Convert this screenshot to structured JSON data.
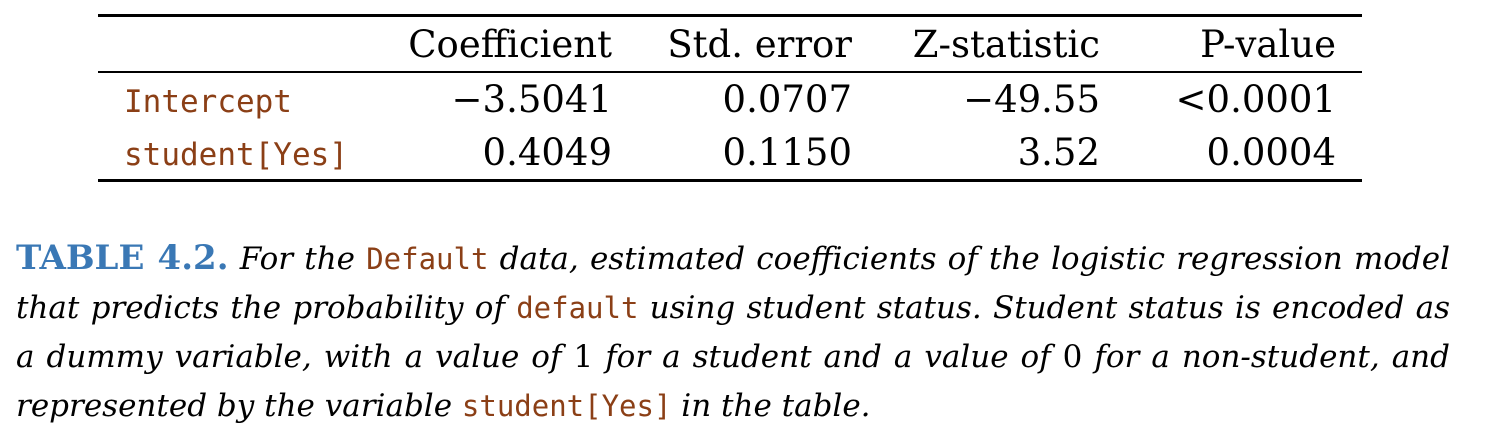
{
  "table": {
    "headers": [
      "Coefficient",
      "Std. error",
      "Z-statistic",
      "P-value"
    ],
    "rows": [
      {
        "name": "Intercept",
        "coefficient": "−3.5041",
        "std_error": "0.0707",
        "z_statistic": "−49.55",
        "p_value": "<0.0001"
      },
      {
        "name": "student[Yes]",
        "coefficient": "0.4049",
        "std_error": "0.1150",
        "z_statistic": "3.52",
        "p_value": "0.0004"
      }
    ]
  },
  "caption": {
    "label": "TABLE 4.2.",
    "part1": "For the",
    "code1": "Default",
    "part2": "data, estimated coefficients of the logistic regression model that predicts the probability of",
    "code2": "default",
    "part3": "using student status. Student status is encoded as a dummy variable, with a value of",
    "num1": "1",
    "part4": "for a student and a value of",
    "num2": "0",
    "part5": "for a non-student, and represented by the variable",
    "code3": "student[Yes]",
    "part6": "in the table."
  }
}
